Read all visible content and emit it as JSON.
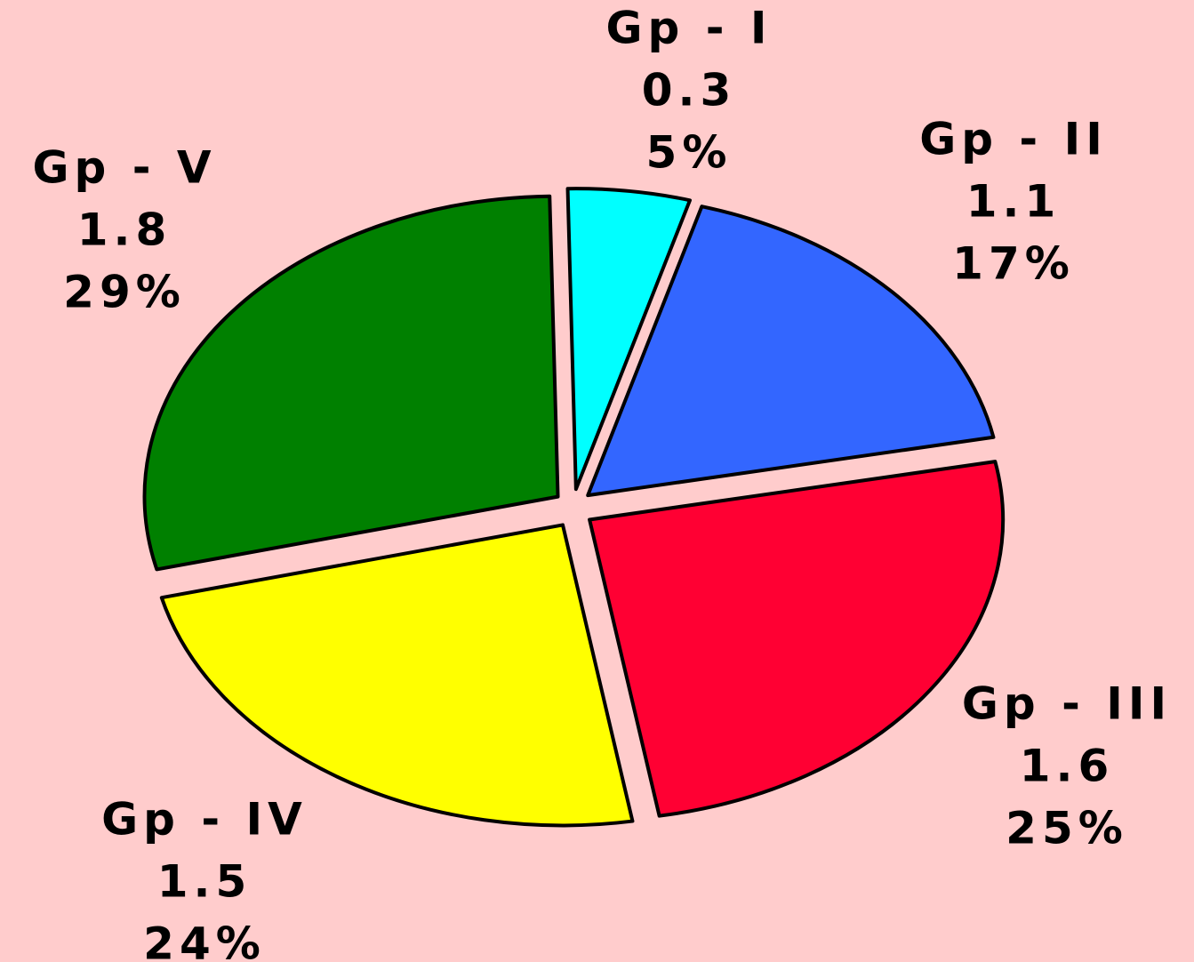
{
  "chart_data": {
    "type": "pie",
    "categories": [
      "Gp - I",
      "Gp - II",
      "Gp - III",
      "Gp - IV",
      "Gp - V"
    ],
    "values": [
      0.3,
      1.1,
      1.6,
      1.5,
      1.8
    ],
    "percent_labels": [
      "5%",
      "17%",
      "25%",
      "24%",
      "29%"
    ],
    "colors": [
      "#00ffff",
      "#3366ff",
      "#ff0033",
      "#ffff00",
      "#008000"
    ]
  }
}
